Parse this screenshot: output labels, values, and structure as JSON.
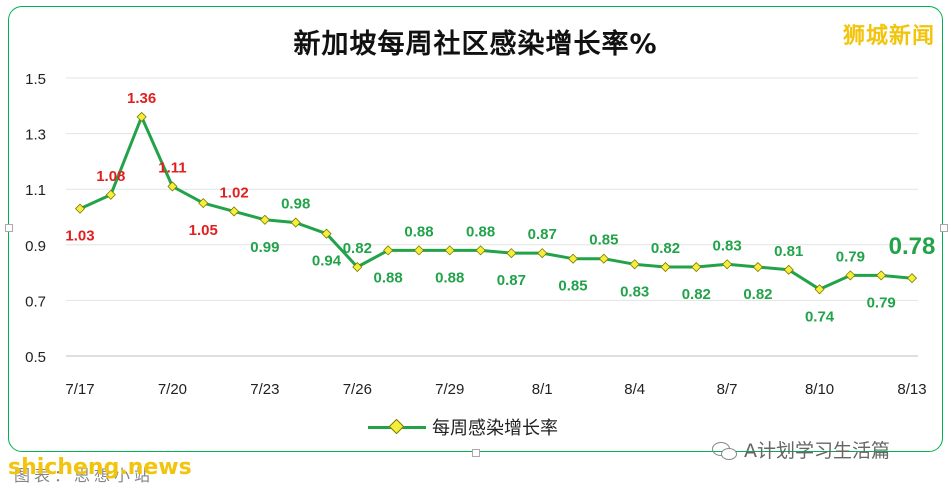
{
  "title": "新加坡每周社区感染增长率%",
  "brand_watermark": "狮城新闻",
  "site_watermark": "shicheng.news",
  "account_watermark": "A计划学习生活篇",
  "caption": "图表：思想小站",
  "colors": {
    "line": "#22a34a",
    "marker": "#f5ef3c",
    "label_red": "#e02020",
    "label_green": "#22a34a",
    "frame": "#00b050",
    "brand": "#f2c40c"
  },
  "chart_data": {
    "type": "line",
    "title": "新加坡每周社区感染增长率%",
    "x": [
      "7/17",
      "7/18",
      "7/19",
      "7/20",
      "7/21",
      "7/22",
      "7/23",
      "7/24",
      "7/25",
      "7/26",
      "7/27",
      "7/28",
      "7/29",
      "7/30",
      "7/31",
      "8/1",
      "8/2",
      "8/3",
      "8/4",
      "8/5",
      "8/6",
      "8/7",
      "8/8",
      "8/9",
      "8/10",
      "8/11",
      "8/12",
      "8/13"
    ],
    "x_tick_labels": [
      "7/17",
      "7/20",
      "7/23",
      "7/26",
      "7/29",
      "8/1",
      "8/4",
      "8/7",
      "8/10",
      "8/13"
    ],
    "series": [
      {
        "name": "每周感染增长率",
        "values": [
          1.03,
          1.08,
          1.36,
          1.11,
          1.05,
          1.02,
          0.99,
          0.98,
          0.94,
          0.82,
          0.88,
          0.88,
          0.88,
          0.88,
          0.87,
          0.87,
          0.85,
          0.85,
          0.83,
          0.82,
          0.82,
          0.83,
          0.82,
          0.81,
          0.74,
          0.79,
          0.79,
          0.78
        ]
      }
    ],
    "data_labels": [
      "1.03",
      "1.08",
      "1.36",
      "1.11",
      "1.05",
      "1.02",
      "0.99",
      "0.98",
      "0.94",
      "0.82",
      "0.88",
      "0.88",
      "0.88",
      "0.88",
      "0.87",
      "0.87",
      "0.85",
      "0.85",
      "0.83",
      "0.82",
      "0.82",
      "0.83",
      "0.82",
      "0.81",
      "0.74",
      "0.79",
      "0.79",
      "0.78"
    ],
    "y_ticks": [
      "0.5",
      "0.7",
      "0.9",
      "1.1",
      "1.3",
      "1.5"
    ],
    "ylim": [
      0.5,
      1.5
    ],
    "grid": "horizontal",
    "legend_position": "bottom",
    "xlabel": "",
    "ylabel": ""
  }
}
